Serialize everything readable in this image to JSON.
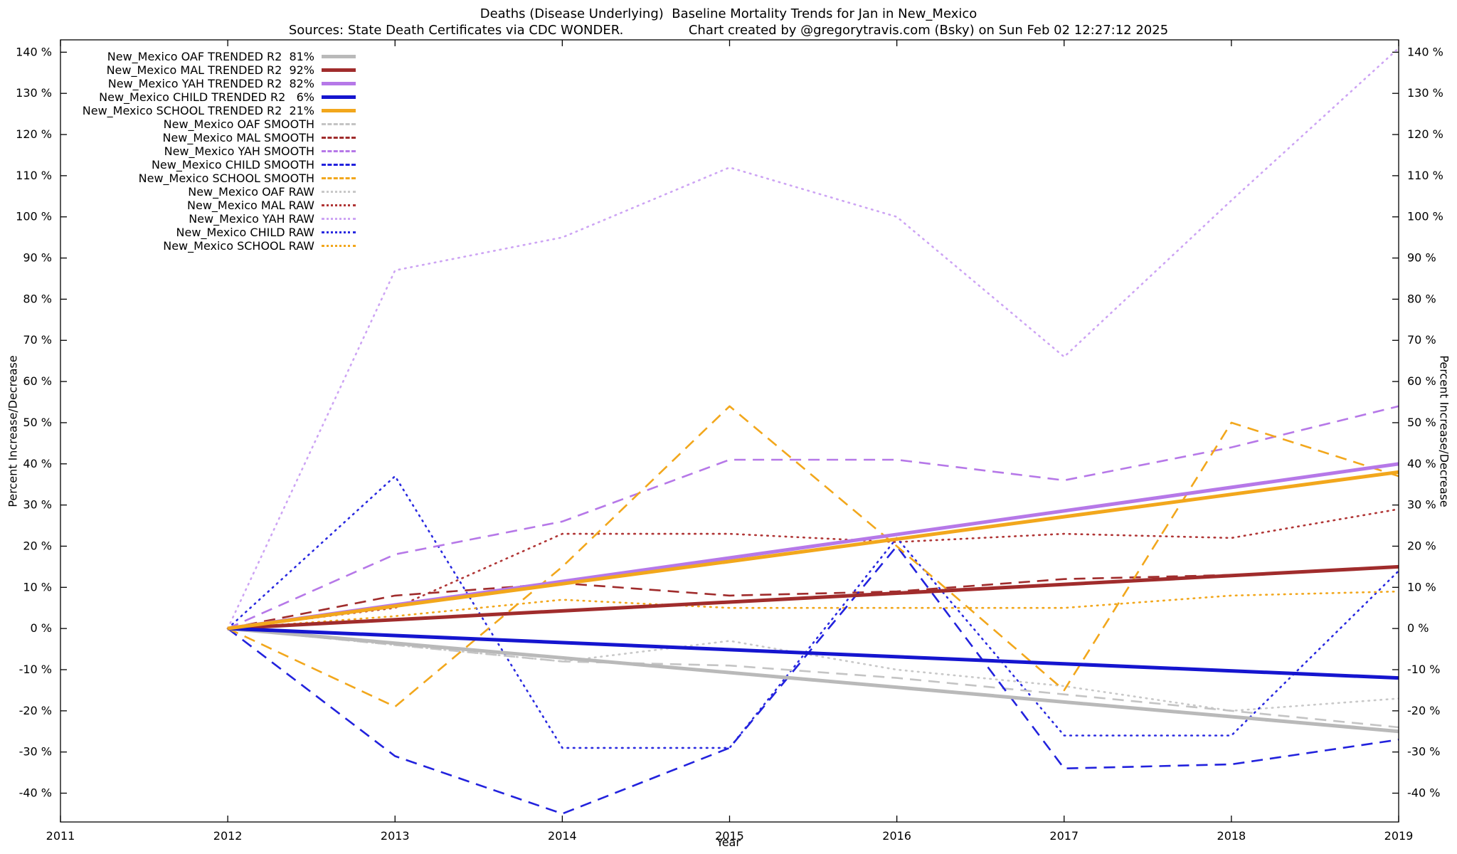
{
  "header": {
    "title": "Deaths (Disease Underlying)  Baseline Mortality Trends for Jan in New_Mexico",
    "subtitle": "Sources: State Death Certificates via CDC WONDER.                Chart created by @gregorytravis.com (Bsky) on Sun Feb 02 12:27:12 2025"
  },
  "chart_data": {
    "type": "line",
    "xlabel": "Year",
    "ylabel_left": "Percent Increase/Decrease",
    "ylabel_right": "Percent Increase/Decrease",
    "xlim": [
      2011,
      2019
    ],
    "ylim": [
      -47,
      143
    ],
    "x_ticks": [
      2011,
      2012,
      2013,
      2014,
      2015,
      2016,
      2017,
      2018,
      2019
    ],
    "y_ticks": [
      -40,
      -30,
      -20,
      -10,
      0,
      10,
      20,
      30,
      40,
      50,
      60,
      70,
      80,
      90,
      100,
      110,
      120,
      130,
      140
    ],
    "y_tick_suffix": " %",
    "grid": false,
    "legend_position": "top-left",
    "series": [
      {
        "id": "oaf-trended",
        "legend": "New_Mexico OAF TRENDED R2  81%",
        "style": "solid",
        "width": 5,
        "color": "#b9b9b9",
        "x": [
          2012,
          2019
        ],
        "values": [
          0,
          -25
        ]
      },
      {
        "id": "mal-trended",
        "legend": "New_Mexico MAL TRENDED R2  92%",
        "style": "solid",
        "width": 5,
        "color": "#a02c2c",
        "x": [
          2012,
          2019
        ],
        "values": [
          0,
          15
        ]
      },
      {
        "id": "yah-trended",
        "legend": "New_Mexico YAH TRENDED R2  82%",
        "style": "solid",
        "width": 5,
        "color": "#b678e8",
        "x": [
          2012,
          2019
        ],
        "values": [
          0,
          40
        ]
      },
      {
        "id": "child-trended",
        "legend": "New_Mexico CHILD TRENDED R2   6%",
        "style": "solid",
        "width": 5,
        "color": "#1515cf",
        "x": [
          2012,
          2019
        ],
        "values": [
          0,
          -12
        ]
      },
      {
        "id": "school-trended",
        "legend": "New_Mexico SCHOOL TRENDED R2  21%",
        "style": "solid",
        "width": 5,
        "color": "#f2a71c",
        "x": [
          2012,
          2019
        ],
        "values": [
          0,
          38
        ]
      },
      {
        "id": "oaf-smooth",
        "legend": "New_Mexico OAF SMOOTH",
        "style": "dashed",
        "width": 2.6,
        "color": "#c4c4c4",
        "x": [
          2012,
          2013,
          2014,
          2015,
          2016,
          2017,
          2018,
          2019
        ],
        "values": [
          0,
          -4,
          -8,
          -9,
          -12,
          -16,
          -20,
          -24
        ]
      },
      {
        "id": "mal-smooth",
        "legend": "New_Mexico MAL SMOOTH",
        "style": "dashed",
        "width": 2.6,
        "color": "#a02c2c",
        "x": [
          2012,
          2013,
          2014,
          2015,
          2016,
          2017,
          2018,
          2019
        ],
        "values": [
          0,
          8,
          11,
          8,
          9,
          12,
          13,
          15
        ]
      },
      {
        "id": "yah-smooth",
        "legend": "New_Mexico YAH SMOOTH",
        "style": "dashed",
        "width": 2.6,
        "color": "#b678e8",
        "x": [
          2012,
          2013,
          2014,
          2015,
          2016,
          2017,
          2018,
          2019
        ],
        "values": [
          0,
          18,
          26,
          41,
          41,
          36,
          44,
          54
        ]
      },
      {
        "id": "child-smooth",
        "legend": "New_Mexico CHILD SMOOTH",
        "style": "dashed",
        "width": 2.6,
        "color": "#2222dd",
        "x": [
          2012,
          2013,
          2014,
          2015,
          2016,
          2017,
          2018,
          2019
        ],
        "values": [
          0,
          -31,
          -45,
          -29,
          20,
          -34,
          -33,
          -27
        ]
      },
      {
        "id": "school-smooth",
        "legend": "New_Mexico SCHOOL SMOOTH",
        "style": "dashed",
        "width": 2.6,
        "color": "#f2a71c",
        "x": [
          2012,
          2013,
          2014,
          2015,
          2016,
          2017,
          2018,
          2019
        ],
        "values": [
          0,
          -19,
          15,
          54,
          20,
          -15,
          50,
          37
        ]
      },
      {
        "id": "oaf-raw",
        "legend": "New_Mexico OAF RAW",
        "style": "dotted",
        "width": 2.6,
        "color": "#c8c8c8",
        "x": [
          2012,
          2013,
          2014,
          2015,
          2016,
          2017,
          2018,
          2019
        ],
        "values": [
          0,
          -4,
          -8,
          -3,
          -10,
          -14,
          -20,
          -17
        ]
      },
      {
        "id": "mal-raw",
        "legend": "New_Mexico MAL RAW",
        "style": "dotted",
        "width": 2.6,
        "color": "#b03535",
        "x": [
          2012,
          2013,
          2014,
          2015,
          2016,
          2017,
          2018,
          2019
        ],
        "values": [
          0,
          5,
          23,
          23,
          21,
          23,
          22,
          29
        ]
      },
      {
        "id": "yah-raw",
        "legend": "New_Mexico YAH RAW",
        "style": "dotted",
        "width": 2.6,
        "color": "#cda4f4",
        "x": [
          2012,
          2013,
          2014,
          2015,
          2016,
          2017,
          2018,
          2019
        ],
        "values": [
          0,
          87,
          95,
          112,
          100,
          66,
          104,
          141
        ]
      },
      {
        "id": "child-raw",
        "legend": "New_Mexico CHILD RAW",
        "style": "dotted",
        "width": 2.6,
        "color": "#2a2ae0",
        "x": [
          2012,
          2013,
          2014,
          2015,
          2016,
          2017,
          2018,
          2019
        ],
        "values": [
          0,
          37,
          -29,
          -29,
          22,
          -26,
          -26,
          14
        ]
      },
      {
        "id": "school-raw",
        "legend": "New_Mexico SCHOOL RAW",
        "style": "dotted",
        "width": 2.6,
        "color": "#f2a71c",
        "x": [
          2012,
          2013,
          2014,
          2015,
          2016,
          2017,
          2018,
          2019
        ],
        "values": [
          0,
          3,
          7,
          5,
          5,
          5,
          8,
          9
        ]
      }
    ]
  }
}
